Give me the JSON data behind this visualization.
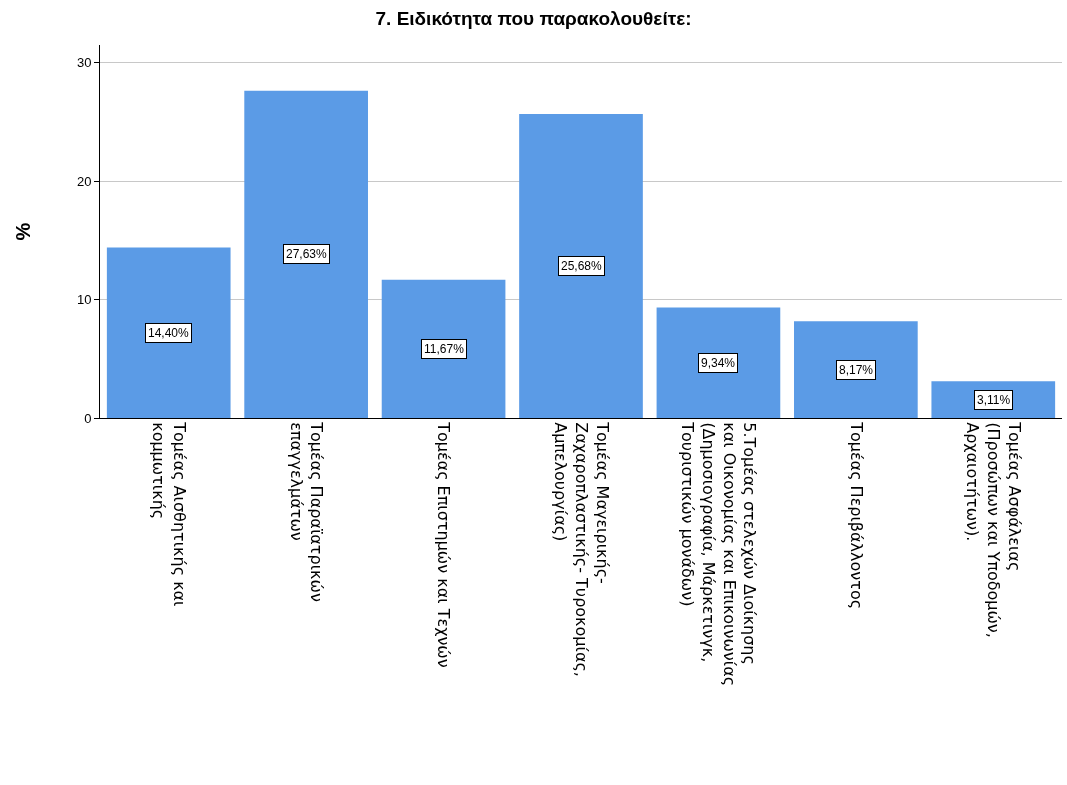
{
  "chart_data": {
    "type": "bar",
    "title": "7. Ειδικότητα που παρακολουθείτε:",
    "ylabel": "%",
    "categories": [
      "Τομέας Αισθητικής και\nκομμωτικής",
      "Τομέας Παραϊατρικών\nεπαγγελμάτων",
      "Τομέας Επιστημών και Τεχνών",
      "Τομέας Μαγειρικής-\nΖαχαροπλαστικής- Τυροκομίας,\nΑμπελουργίας)",
      "5.Τομέας στελεχών Διοίκησης\nκαι Οικονομίας και Επικοινωνίας\n(Δημοσιογραφία, Μάρκετινγκ,\nΤουριστικών μονάδων)",
      "Τομέας Περιβάλλοντος",
      "Τομέας Ασφάλειας\n(Προσώπων και Υποδομών,\nΑρχαιοτήτων)."
    ],
    "values": [
      14.4,
      27.63,
      11.67,
      25.68,
      9.34,
      8.17,
      3.11
    ],
    "value_labels": [
      "14,40%",
      "27,63%",
      "11,67%",
      "25,68%",
      "9,34%",
      "8,17%",
      "3,11%"
    ],
    "color": "#5b9be6",
    "ylim": [
      0,
      31.5
    ],
    "yticks": [
      0,
      10,
      20,
      30
    ],
    "grid": "y"
  }
}
